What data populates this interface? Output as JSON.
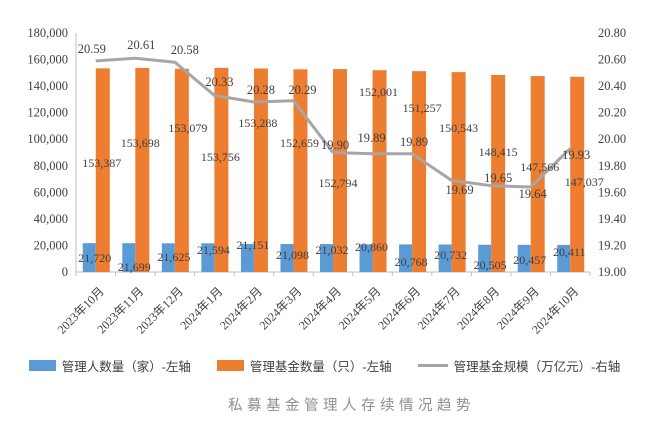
{
  "title": {
    "text": "私募基金管理人存续情况趋势"
  },
  "legend": {
    "items": [
      {
        "label": "管理人数量（家）-左轴"
      },
      {
        "label": "管理基金数量（只）-左轴"
      },
      {
        "label": "管理基金规模（万亿元）-右轴"
      }
    ]
  },
  "chart_data": {
    "type": "combo-bar-line",
    "title": "私募基金管理人存续情况趋势",
    "categories": [
      "2023年10月",
      "2023年11月",
      "2023年12月",
      "2024年1月",
      "2024年2月",
      "2024年3月",
      "2024年4月",
      "2024年5月",
      "2024年6月",
      "2024年7月",
      "2024年8月",
      "2024年9月",
      "2024年10月"
    ],
    "series": [
      {
        "name": "管理人数量（家）-左轴",
        "chart_type": "bar",
        "axis": "left",
        "color": "#5B9BD5",
        "values": [
          21720,
          21699,
          21625,
          21594,
          21151,
          21098,
          21032,
          20860,
          20768,
          20732,
          20505,
          20457,
          20411
        ],
        "labels": [
          "21,720",
          "21,699",
          "21,625",
          "21,594",
          "21,151",
          "21,098",
          "21,032",
          "20,860",
          "20,768",
          "20,732",
          "20,505",
          "20,457",
          "20,411"
        ]
      },
      {
        "name": "管理基金数量（只）-左轴",
        "chart_type": "bar",
        "axis": "left",
        "color": "#ED7D31",
        "values": [
          153387,
          153698,
          153079,
          153756,
          153288,
          152659,
          152794,
          152001,
          151257,
          150543,
          148415,
          147566,
          147037
        ],
        "labels": [
          "153,387",
          "153,698",
          "153,079",
          "153,756",
          "153,288",
          "152,659",
          "152,794",
          "152,001",
          "151,257",
          "150,543",
          "148,415",
          "147,566",
          "147,037"
        ]
      },
      {
        "name": "管理基金规模（万亿元）-右轴",
        "chart_type": "line",
        "axis": "right",
        "color": "#A6A6A6",
        "values": [
          20.59,
          20.61,
          20.58,
          20.33,
          20.28,
          20.29,
          19.9,
          19.89,
          19.89,
          19.69,
          19.65,
          19.64,
          19.93
        ],
        "labels": [
          "20.59",
          "20.61",
          "20.58",
          "20.33",
          "20.28",
          "20.29",
          "19.90",
          "19.89",
          "19.89",
          "19.69",
          "19.65",
          "19.64",
          "19.93"
        ]
      }
    ],
    "left_axis": {
      "min": 0,
      "max": 180000,
      "step": 20000,
      "tick_labels": [
        "180,000",
        "160,000",
        "140,000",
        "120,000",
        "100,000",
        "80,000",
        "60,000",
        "40,000",
        "20,000",
        "0"
      ]
    },
    "right_axis": {
      "min": 19.0,
      "max": 20.8,
      "step": 0.2,
      "tick_labels": [
        "20.80",
        "20.60",
        "20.40",
        "20.20",
        "20.00",
        "19.80",
        "19.60",
        "19.40",
        "19.20",
        "19.00"
      ]
    },
    "grid": false,
    "legend_position": "bottom",
    "label_layout": {
      "manager_label_y": [
        258,
        267,
        257,
        250,
        245,
        255,
        250,
        247,
        262,
        255,
        265,
        260,
        252
      ],
      "fund_label_dx": [
        6,
        5,
        13,
        6,
        4,
        6,
        5,
        6,
        10,
        7,
        7,
        9,
        14
      ],
      "fund_label_y": [
        163,
        143,
        128,
        157,
        123,
        143,
        183,
        92,
        108,
        128,
        152,
        167,
        182
      ],
      "scale_label_dx": [
        -4,
        6,
        10,
        5,
        7,
        9,
        2,
        -1,
        2,
        8,
        7,
        2,
        6
      ],
      "scale_label_y": [
        49,
        45,
        50,
        82,
        90,
        90,
        145,
        138,
        142,
        190,
        178,
        194,
        155
      ]
    }
  }
}
